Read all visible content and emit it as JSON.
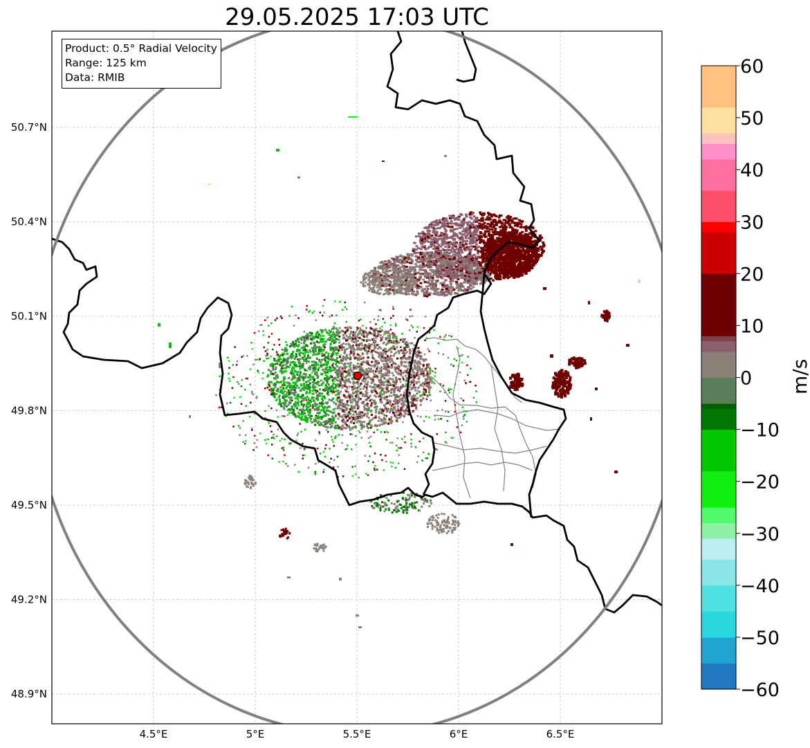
{
  "title": "29.05.2025 17:03 UTC",
  "info_box": {
    "product": "Product: 0.5° Radial Velocity",
    "range": "Range: 125 km",
    "data": "Data: RMIB"
  },
  "axes": {
    "lon_ticks": [
      "4.5°E",
      "5°E",
      "5.5°E",
      "6°E",
      "6.5°E"
    ],
    "lat_ticks": [
      "50.7°N",
      "50.4°N",
      "50.1°N",
      "49.8°N",
      "49.5°N",
      "49.2°N",
      "48.9°N"
    ],
    "lon_values": [
      4.5,
      5.0,
      5.5,
      6.0,
      6.5
    ],
    "lat_values": [
      50.7,
      50.4,
      50.1,
      49.8,
      49.5,
      49.2,
      48.9
    ],
    "lon_range": [
      4.0,
      7.0
    ],
    "lat_range": [
      48.8,
      50.99
    ],
    "grid": true
  },
  "radar": {
    "site_lon": 5.505,
    "site_lat": 49.914,
    "range_km": 125,
    "site_marker_color": "#e00000"
  },
  "colorbar": {
    "unit": "m/s",
    "min": -60,
    "max": 60,
    "tick_labels": [
      "60",
      "50",
      "40",
      "30",
      "20",
      "10",
      "0",
      "−10",
      "−20",
      "−30",
      "−40",
      "−50",
      "−60"
    ],
    "tick_values": [
      60,
      50,
      40,
      30,
      20,
      10,
      0,
      -10,
      -20,
      -30,
      -40,
      -50,
      -60
    ],
    "stops": [
      {
        "v": -60,
        "c": "#1f78c0"
      },
      {
        "v": -55,
        "c": "#22a4d0"
      },
      {
        "v": -50,
        "c": "#2ad7dd"
      },
      {
        "v": -45,
        "c": "#4fe0e0"
      },
      {
        "v": -40,
        "c": "#8ae6e6"
      },
      {
        "v": -35,
        "c": "#bdeef0"
      },
      {
        "v": -31,
        "c": "#90f0a8"
      },
      {
        "v": -28,
        "c": "#50fa6a"
      },
      {
        "v": -25,
        "c": "#10f010"
      },
      {
        "v": -18,
        "c": "#00c800"
      },
      {
        "v": -10,
        "c": "#007800"
      },
      {
        "v": -6,
        "c": "#006000"
      },
      {
        "v": -5,
        "c": "#5d7d5a"
      },
      {
        "v": 0,
        "c": "#8a8078"
      },
      {
        "v": 5,
        "c": "#8a5f6e"
      },
      {
        "v": 7,
        "c": "#7a4548"
      },
      {
        "v": 8,
        "c": "#6e0000"
      },
      {
        "v": 20,
        "c": "#cc0000"
      },
      {
        "v": 28,
        "c": "#ff0000"
      },
      {
        "v": 30,
        "c": "#ff4f6a"
      },
      {
        "v": 36,
        "c": "#ff70a0"
      },
      {
        "v": 42,
        "c": "#ff90cc"
      },
      {
        "v": 45,
        "c": "#ffc0c0"
      },
      {
        "v": 47,
        "c": "#ffe0a0"
      },
      {
        "v": 52,
        "c": "#ffc080"
      },
      {
        "v": 60,
        "c": "#ff9f60"
      }
    ]
  },
  "colors": {
    "range_ring": "#808080",
    "border_thick": "#000000",
    "border_thin": "#808080",
    "grid": "#bdbdbd"
  }
}
